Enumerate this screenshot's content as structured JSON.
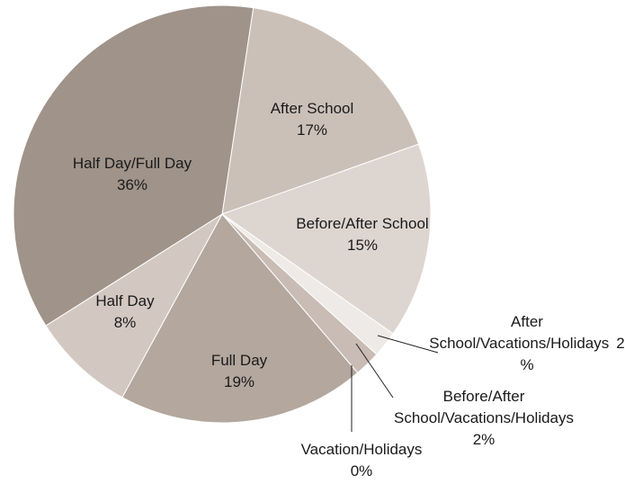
{
  "chart_data": {
    "type": "pie",
    "categories": [
      "After School",
      "Before/After School",
      "After School/Vacations/Holidays",
      "Before/After School/Vacations/Holidays",
      "Vacation/Holidays",
      "Full Day",
      "Half Day",
      "Half Day/Full Day"
    ],
    "values": [
      17,
      15,
      2,
      2,
      0,
      19,
      8,
      36
    ],
    "value_labels": [
      "17%",
      "15%",
      "2%",
      "2%",
      "0%",
      "19%",
      "8%",
      "36%"
    ],
    "colors": [
      "#cbc0b8",
      "#ddd5d0",
      "#eeeae7",
      "#c8bcb4",
      "#b9ada4",
      "#b3a79e",
      "#d3c8c1",
      "#a09389"
    ]
  }
}
